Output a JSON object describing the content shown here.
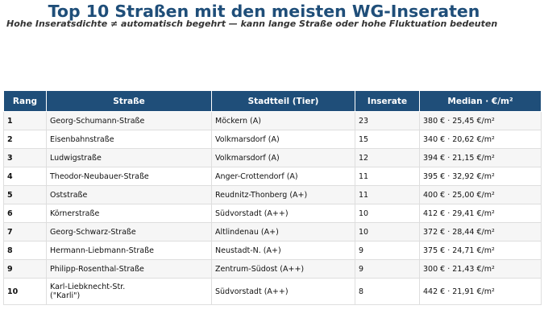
{
  "header": {
    "title": "Top 10 Straßen mit den meisten WG-Inseraten",
    "subtitle": "Hohe Inseratsdichte ≠ automatisch begehrt — kann lange Straße oder hohe Fluktuation bedeuten"
  },
  "table": {
    "columns": [
      "Rang",
      "Straße",
      "Stadtteil (Tier)",
      "Inserate",
      "Median · €/m²"
    ],
    "rows": [
      [
        "1",
        "Georg-Schumann-Straße",
        "Möckern (A)",
        "23",
        "380 € · 25,45 €/m²"
      ],
      [
        "2",
        "Eisenbahnstraße",
        "Volkmarsdorf (A)",
        "15",
        "340 € · 20,62 €/m²"
      ],
      [
        "3",
        "Ludwigstraße",
        "Volkmarsdorf (A)",
        "12",
        "394 € · 21,15 €/m²"
      ],
      [
        "4",
        "Theodor-Neubauer-Straße",
        "Anger-Crottendorf (A)",
        "11",
        "395 € · 32,92 €/m²"
      ],
      [
        "5",
        "Oststraße",
        "Reudnitz-Thonberg (A+)",
        "11",
        "400 € · 25,00 €/m²"
      ],
      [
        "6",
        "Körnerstraße",
        "Südvorstadt (A++)",
        "10",
        "412 € · 29,41 €/m²"
      ],
      [
        "7",
        "Georg-Schwarz-Straße",
        "Altlindenau (A+)",
        "10",
        "372 € · 28,44 €/m²"
      ],
      [
        "8",
        "Hermann-Liebmann-Straße",
        "Neustadt-N. (A+)",
        "9",
        "375 € · 24,71 €/m²"
      ],
      [
        "9",
        "Philipp-Rosenthal-Straße",
        "Zentrum-Südost (A++)",
        "9",
        "300 € · 21,43 €/m²"
      ],
      [
        "10",
        "Karl-Liebknecht-Str.\n(\"Karli\")",
        "Südvorstadt (A++)",
        "8",
        "442 € · 21,91 €/m²"
      ]
    ]
  }
}
